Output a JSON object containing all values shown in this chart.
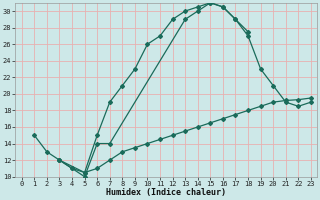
{
  "xlabel": "Humidex (Indice chaleur)",
  "bg_color": "#cde8e8",
  "grid_color": "#e8b0b0",
  "line_color": "#1a6b5a",
  "xlim": [
    -0.5,
    23.5
  ],
  "ylim": [
    10,
    31
  ],
  "xticks": [
    0,
    1,
    2,
    3,
    4,
    5,
    6,
    7,
    8,
    9,
    10,
    11,
    12,
    13,
    14,
    15,
    16,
    17,
    18,
    19,
    20,
    21,
    22,
    23
  ],
  "yticks": [
    10,
    12,
    14,
    16,
    18,
    20,
    22,
    24,
    26,
    28,
    30
  ],
  "line1_x": [
    1,
    2,
    3,
    4,
    5,
    6,
    7,
    8,
    9,
    10,
    11,
    12,
    13,
    14,
    15,
    16,
    17,
    18
  ],
  "line1_y": [
    15,
    13,
    12,
    11,
    10.5,
    15,
    19,
    21,
    23,
    26,
    27,
    29,
    30,
    30.5,
    31,
    30.5,
    29,
    27.5
  ],
  "line2_x": [
    3,
    4,
    5,
    6,
    7,
    13,
    14,
    15,
    16,
    17,
    18,
    19,
    20,
    21,
    22,
    23
  ],
  "line2_y": [
    12,
    11,
    10,
    14,
    14,
    29,
    30,
    31,
    30.5,
    29,
    27,
    23,
    21,
    19,
    18.5,
    19
  ],
  "line3_x": [
    3,
    5,
    6,
    7,
    8,
    9,
    10,
    11,
    12,
    13,
    14,
    15,
    16,
    17,
    18,
    19,
    20,
    21,
    22,
    23
  ],
  "line3_y": [
    12,
    10.5,
    11,
    12,
    13,
    13.5,
    14,
    14.5,
    15,
    15.5,
    16,
    16.5,
    17,
    17.5,
    18,
    18.5,
    19,
    19.2,
    19.3,
    19.5
  ],
  "tick_fontsize": 5,
  "xlabel_fontsize": 6
}
